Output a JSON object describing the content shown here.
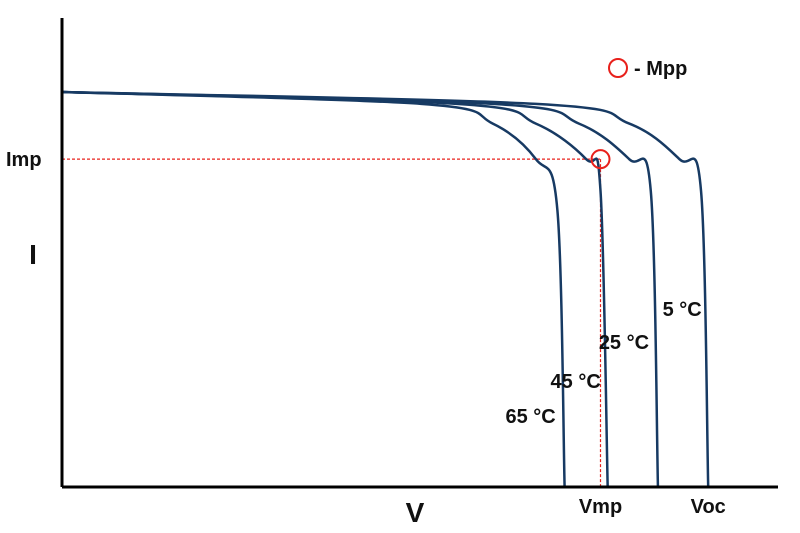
{
  "chart_data": {
    "type": "line",
    "title": "",
    "xlabel": "V",
    "ylabel": "I",
    "x_tick_labels": [
      "Vmp",
      "Voc"
    ],
    "y_tick_labels": [
      "Imp"
    ],
    "xlim": [
      0,
      1
    ],
    "ylim": [
      0,
      1
    ],
    "grid": false,
    "legend": {
      "marker": "circle",
      "label": "- Mpp",
      "placement": "top-right"
    },
    "marker": {
      "name": "Mpp",
      "x": 0.75,
      "y": 0.83
    },
    "series": [
      {
        "name": "65 °C",
        "x": [
          0,
          0.5,
          0.6,
          0.66,
          0.69,
          0.7
        ],
        "y": [
          1.0,
          0.97,
          0.92,
          0.83,
          0.7,
          0.0
        ]
      },
      {
        "name": "45 °C",
        "x": [
          0,
          0.55,
          0.66,
          0.73,
          0.75,
          0.76
        ],
        "y": [
          1.0,
          0.97,
          0.92,
          0.83,
          0.75,
          0.0
        ]
      },
      {
        "name": "25 °C",
        "x": [
          0,
          0.6,
          0.72,
          0.79,
          0.82,
          0.83
        ],
        "y": [
          1.0,
          0.97,
          0.92,
          0.83,
          0.75,
          0.0
        ]
      },
      {
        "name": "5 °C",
        "x": [
          0,
          0.66,
          0.79,
          0.86,
          0.89,
          0.9
        ],
        "y": [
          1.0,
          0.97,
          0.92,
          0.83,
          0.75,
          0.0
        ]
      }
    ],
    "colors": {
      "curve": "#173a63",
      "guide": "#e8201b",
      "marker": "#e8201b",
      "axis": "#000000"
    }
  }
}
